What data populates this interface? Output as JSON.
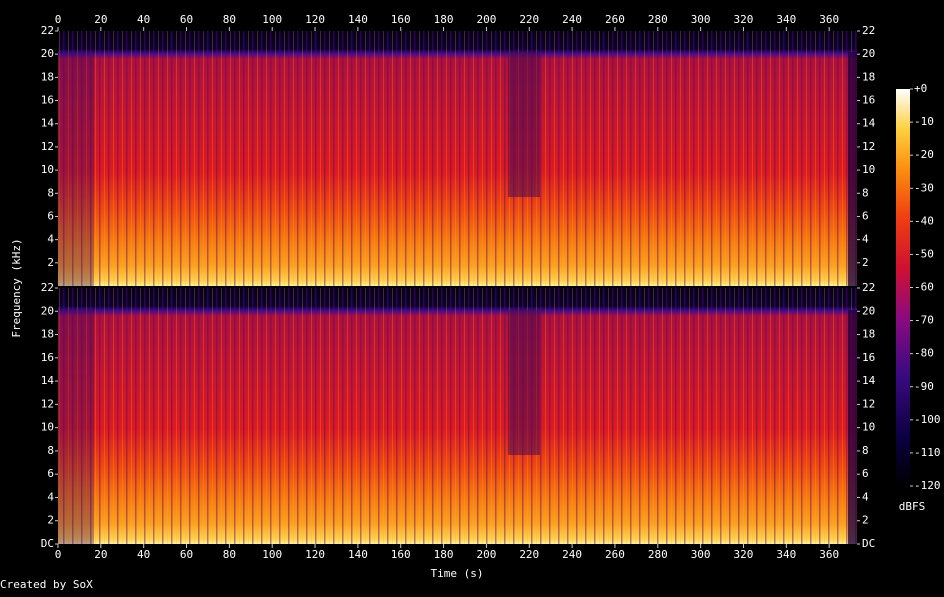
{
  "chart_data": [
    {
      "type": "spectrogram",
      "xlim": [
        0,
        373
      ],
      "xticks": [
        0,
        20,
        40,
        60,
        80,
        100,
        120,
        140,
        160,
        180,
        200,
        220,
        240,
        260,
        280,
        300,
        320,
        340,
        360
      ],
      "ylim": [
        0,
        22
      ],
      "yticks": [
        2,
        4,
        6,
        8,
        10,
        12,
        14,
        16,
        18,
        20,
        22
      ]
    },
    {
      "type": "spectrogram",
      "xlabel": "Time (s)",
      "xlim": [
        0,
        373
      ],
      "xticks": [
        0,
        20,
        40,
        60,
        80,
        100,
        120,
        140,
        160,
        180,
        200,
        220,
        240,
        260,
        280,
        300,
        320,
        340,
        360
      ],
      "ylim": [
        0,
        22
      ],
      "yticks": [
        {
          "value": 0,
          "label": "DC"
        },
        2,
        4,
        6,
        8,
        10,
        12,
        14,
        16,
        18,
        20,
        22
      ]
    }
  ],
  "ylabel": "Frequency (kHz)",
  "credit": "Created by SoX",
  "colorbar": {
    "label": "dBFS",
    "lim": [
      -120,
      0
    ],
    "ticks": [
      {
        "value": 0,
        "label": "+0"
      },
      -10,
      -20,
      -30,
      -40,
      -50,
      -60,
      -70,
      -80,
      -90,
      -100,
      -110,
      -120
    ]
  }
}
